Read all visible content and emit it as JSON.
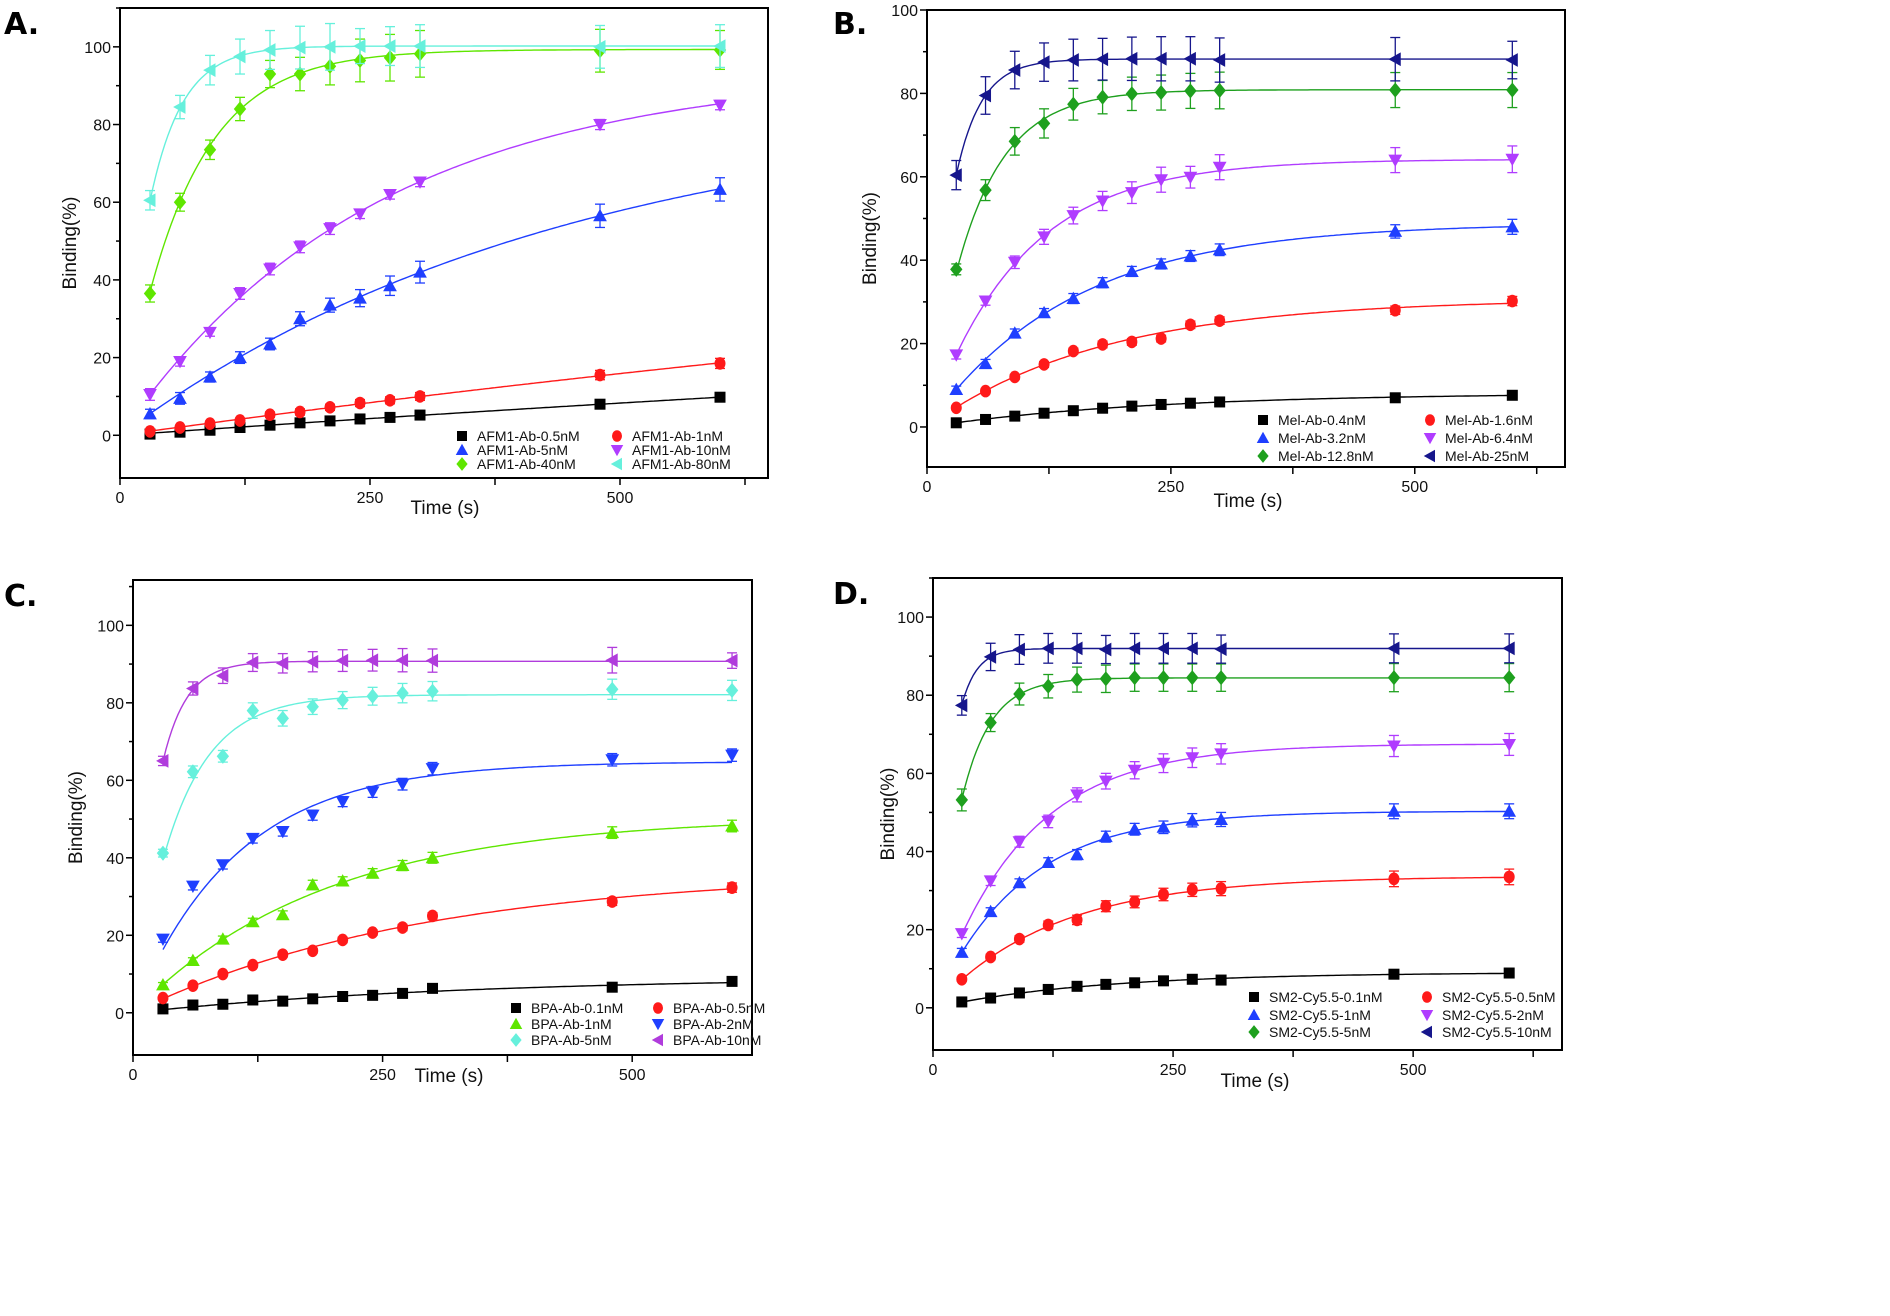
{
  "chart_data": [
    {
      "panel": "A.",
      "type": "scatter",
      "xlabel": "Time (s)",
      "ylabel": "Binding(%)",
      "xlim": [
        0,
        648
      ],
      "ylim": [
        -11,
        110
      ],
      "xticks": [
        0,
        250,
        500
      ],
      "yticks": [
        0,
        20,
        40,
        60,
        80,
        100
      ],
      "legend_position": "bottom-right",
      "x": [
        30,
        60,
        90,
        120,
        150,
        180,
        210,
        240,
        270,
        300,
        480,
        600
      ],
      "series": [
        {
          "name": "AFM1-Ab-0.5nM",
          "color": "#000000",
          "marker": "square",
          "values": [
            0.3,
            0.8,
            1.3,
            2,
            2.6,
            3.2,
            3.7,
            4.2,
            4.6,
            5.2,
            8,
            9.8
          ],
          "errors": [
            0.3,
            0.3,
            0.4,
            0.4,
            0.5,
            0.5,
            0.5,
            0.5,
            0.6,
            0.6,
            0.8,
            0.8
          ]
        },
        {
          "name": "AFM1-Ab-1nM",
          "color": "#ff1a1a",
          "marker": "circle",
          "values": [
            1,
            2,
            3,
            3.8,
            5.3,
            6,
            7.2,
            8.3,
            9,
            10,
            15.5,
            18.5
          ],
          "errors": [
            0.4,
            0.5,
            0.6,
            0.6,
            0.7,
            0.8,
            0.8,
            0.9,
            0.9,
            1,
            1.2,
            1.3
          ]
        },
        {
          "name": "AFM1-Ab-5nM",
          "color": "#1f3fff",
          "marker": "triangle-up",
          "values": [
            5.5,
            9.5,
            15,
            20,
            23.5,
            30,
            33.5,
            35.3,
            38.5,
            42,
            56.5,
            63.3
          ],
          "errors": [
            1.2,
            1.5,
            1.3,
            1.5,
            1.5,
            1.8,
            1.8,
            2.2,
            2.5,
            2.8,
            3,
            3
          ]
        },
        {
          "name": "AFM1-Ab-10nM",
          "color": "#b03cff",
          "marker": "triangle-down",
          "values": [
            10.5,
            19,
            26.5,
            36.5,
            42.8,
            48.5,
            53.2,
            57,
            62,
            65.2,
            80,
            85
          ],
          "errors": [
            1.5,
            1.2,
            1,
            1.5,
            1.5,
            1.5,
            1.5,
            1.2,
            1.2,
            1.2,
            1.3,
            1.2
          ]
        },
        {
          "name": "AFM1-Ab-40nM",
          "color": "#5fe600",
          "marker": "diamond",
          "values": [
            36.5,
            60,
            73.5,
            84,
            93,
            93,
            95,
            96.5,
            97.2,
            98.2,
            99,
            99.2
          ],
          "errors": [
            2.2,
            2.3,
            2.5,
            3,
            3.5,
            4.3,
            4.8,
            5.5,
            6,
            6,
            5.5,
            5
          ]
        },
        {
          "name": "AFM1-Ab-80nM",
          "color": "#66f0dc",
          "marker": "triangle-left",
          "values": [
            60.5,
            84.5,
            94,
            97.5,
            99.2,
            99.8,
            100,
            100.2,
            100.2,
            100.2,
            100,
            100.2
          ],
          "errors": [
            2.5,
            3,
            3.8,
            4.5,
            5,
            5.5,
            6,
            4.5,
            5,
            5.5,
            5.5,
            5.5
          ]
        }
      ]
    },
    {
      "panel": "B.",
      "type": "scatter",
      "xlabel": "Time (s)",
      "ylabel": "Binding(%)",
      "xlim": [
        0,
        654
      ],
      "ylim": [
        -9.6,
        100
      ],
      "xticks": [
        0,
        250,
        500
      ],
      "yticks": [
        0,
        20,
        40,
        60,
        80,
        100
      ],
      "legend_position": "bottom-right",
      "x": [
        30,
        60,
        90,
        120,
        150,
        180,
        210,
        240,
        270,
        300,
        480,
        600
      ],
      "series": [
        {
          "name": "Mel-Ab-0.4nM",
          "color": "#000000",
          "marker": "square",
          "values": [
            1,
            1.8,
            2.6,
            3.3,
            3.9,
            4.5,
            5,
            5.4,
            5.7,
            6,
            7,
            7.6
          ],
          "errors": [
            0.3,
            0.3,
            0.3,
            0.4,
            0.4,
            0.4,
            0.5,
            0.5,
            0.5,
            0.5,
            0.6,
            0.6
          ]
        },
        {
          "name": "Mel-Ab-1.6nM",
          "color": "#ff1a1a",
          "marker": "circle",
          "values": [
            4.6,
            8.6,
            12,
            15,
            18.2,
            19.8,
            20.4,
            21.2,
            24.5,
            25.5,
            28,
            30.2
          ],
          "errors": [
            0.5,
            0.6,
            0.6,
            0.7,
            0.7,
            0.8,
            0.8,
            0.8,
            0.9,
            0.9,
            1,
            1.1
          ]
        },
        {
          "name": "Mel-Ab-3.2nM",
          "color": "#1f3fff",
          "marker": "triangle-up",
          "values": [
            9,
            15.2,
            22.5,
            27.4,
            30.8,
            34.6,
            37.3,
            39.1,
            41,
            42.5,
            46.9,
            48
          ],
          "errors": [
            0.8,
            1,
            1,
            1,
            1.2,
            1.2,
            1.2,
            1.2,
            1.3,
            1.4,
            1.6,
            1.8
          ]
        },
        {
          "name": "Mel-Ab-6.4nM",
          "color": "#b03cff",
          "marker": "triangle-down",
          "values": [
            17.3,
            30.2,
            39.5,
            45.6,
            50.7,
            54.2,
            56.2,
            59.3,
            59.9,
            62.3,
            64,
            64.2
          ],
          "errors": [
            1,
            1,
            1.5,
            1.8,
            2,
            2.3,
            2.6,
            3,
            2.6,
            3,
            3,
            3.2
          ]
        },
        {
          "name": "Mel-Ab-12.8nM",
          "color": "#1ea01e",
          "marker": "diamond",
          "values": [
            37.8,
            56.8,
            68.5,
            72.8,
            77.4,
            79.1,
            79.9,
            80.2,
            80.6,
            80.7,
            80.8,
            80.8
          ],
          "errors": [
            1.3,
            2.5,
            3.3,
            3.5,
            3.8,
            4,
            4,
            4.2,
            4.2,
            4.4,
            4.2,
            4.2
          ]
        },
        {
          "name": "Mel-Ab-25nM",
          "color": "#16168c",
          "marker": "triangle-left",
          "values": [
            60.4,
            79.5,
            85.6,
            87.5,
            88,
            88.2,
            88.3,
            88.3,
            88.3,
            88,
            88.2,
            88
          ],
          "errors": [
            3.5,
            4.5,
            4.5,
            4.6,
            5,
            5,
            5.2,
            5.3,
            5.3,
            5.3,
            5.2,
            4.5
          ]
        }
      ]
    },
    {
      "panel": "C.",
      "type": "scatter",
      "xlabel": "Time (s)",
      "ylabel": "Binding(%)",
      "xlim": [
        0,
        620
      ],
      "ylim": [
        -10.9,
        111.7
      ],
      "xticks": [
        0,
        250,
        500
      ],
      "yticks": [
        0,
        20,
        40,
        60,
        80,
        100
      ],
      "legend_position": "bottom-right",
      "x": [
        30,
        60,
        90,
        120,
        150,
        180,
        210,
        240,
        270,
        300,
        480,
        600
      ],
      "series": [
        {
          "name": "BPA-Ab-0.1nM",
          "color": "#000000",
          "marker": "square",
          "values": [
            1,
            2,
            2.2,
            3.3,
            3,
            3.6,
            4.2,
            4.5,
            5,
            6.3,
            6.6,
            8.1
          ],
          "errors": [
            0.3,
            0.3,
            0.3,
            0.4,
            0.4,
            0.4,
            0.4,
            0.5,
            0.5,
            0.5,
            0.6,
            0.6
          ]
        },
        {
          "name": "BPA-Ab-0.5nM",
          "color": "#ff1a1a",
          "marker": "circle",
          "values": [
            3.8,
            7,
            10,
            12.3,
            15,
            16,
            18.8,
            20.7,
            22,
            25,
            28.7,
            32.3
          ],
          "errors": [
            0.4,
            0.5,
            0.5,
            0.6,
            0.6,
            0.6,
            0.7,
            0.7,
            0.8,
            0.8,
            1,
            1.2
          ]
        },
        {
          "name": "BPA-Ab-1nM",
          "color": "#5fe600",
          "marker": "triangle-up",
          "values": [
            7.2,
            13.5,
            19,
            23.5,
            25.3,
            33,
            34,
            36,
            38,
            40,
            46.5,
            48.2
          ],
          "errors": [
            0.6,
            0.7,
            0.8,
            0.9,
            1,
            1.2,
            1.1,
            1.2,
            1.3,
            1.4,
            1.5,
            1.5
          ]
        },
        {
          "name": "BPA-Ab-2nM",
          "color": "#1f3fff",
          "marker": "triangle-down",
          "values": [
            19,
            32.7,
            38.2,
            45,
            46.8,
            51,
            54.5,
            57,
            59,
            63,
            65.3,
            66.5
          ],
          "errors": [
            0.8,
            1,
            1.1,
            1.2,
            1.2,
            1.3,
            1.3,
            1.4,
            1.5,
            1.6,
            1.6,
            1.6
          ]
        },
        {
          "name": "BPA-Ab-5nM",
          "color": "#66f0dc",
          "marker": "diamond",
          "values": [
            41.2,
            62.2,
            66.2,
            78,
            76,
            79,
            80.7,
            81.7,
            82.5,
            83,
            83.5,
            83.2
          ],
          "errors": [
            1,
            1.5,
            1.5,
            2,
            2,
            2,
            2.2,
            2.3,
            2.5,
            2.5,
            2.6,
            2.6
          ]
        },
        {
          "name": "BPA-Ab-10nM",
          "color": "#b03cdc",
          "marker": "triangle-left",
          "values": [
            65,
            83.7,
            87,
            90.4,
            90.2,
            90.6,
            90.9,
            91,
            91,
            90.9,
            91,
            90.9
          ],
          "errors": [
            1.2,
            1.7,
            2,
            2.3,
            2.5,
            2.6,
            2.8,
            2.8,
            3,
            3,
            3.3,
            2
          ]
        }
      ]
    },
    {
      "panel": "D.",
      "type": "scatter",
      "xlabel": "Time (s)",
      "ylabel": "Binding(%)",
      "xlim": [
        0,
        655
      ],
      "ylim": [
        -10.8,
        110
      ],
      "xticks": [
        0,
        250,
        500
      ],
      "yticks": [
        0,
        20,
        40,
        60,
        80,
        100
      ],
      "legend_position": "bottom-right",
      "x": [
        30,
        60,
        90,
        120,
        150,
        180,
        210,
        240,
        270,
        300,
        480,
        600
      ],
      "series": [
        {
          "name": "SM2-Cy5.5-0.1nM",
          "color": "#000000",
          "marker": "square",
          "values": [
            1.5,
            2.5,
            3.8,
            4.7,
            5.5,
            6,
            6.4,
            6.9,
            7.3,
            7.1,
            8.6,
            8.9
          ],
          "errors": [
            0.3,
            0.3,
            0.3,
            0.4,
            0.4,
            0.4,
            0.4,
            0.5,
            0.5,
            0.5,
            0.6,
            0.6
          ]
        },
        {
          "name": "SM2-Cy5.5-0.5nM",
          "color": "#ff1a1a",
          "marker": "circle",
          "values": [
            7.3,
            13,
            17.6,
            21.2,
            22.5,
            26,
            27.1,
            29,
            30.2,
            30.5,
            33,
            33.5
          ],
          "errors": [
            0.5,
            0.7,
            0.8,
            1,
            1.2,
            1.4,
            1.5,
            1.6,
            1.7,
            1.8,
            2,
            2
          ]
        },
        {
          "name": "SM2-Cy5.5-1nM",
          "color": "#1f3fff",
          "marker": "triangle-up",
          "values": [
            14.2,
            24.6,
            32,
            37.2,
            39.2,
            43.8,
            45.7,
            46.2,
            48,
            48.2,
            50.3,
            50.3
          ],
          "errors": [
            1,
            1,
            1,
            1.2,
            1.3,
            1.4,
            1.5,
            1.6,
            1.7,
            1.8,
            1.9,
            1.9
          ]
        },
        {
          "name": "SM2-Cy5.5-2nM",
          "color": "#b03cff",
          "marker": "triangle-down",
          "values": [
            19,
            32.5,
            42.5,
            47.7,
            54.5,
            58,
            60.8,
            62.6,
            64,
            65,
            67,
            67.4
          ],
          "errors": [
            1,
            1.2,
            1.4,
            1.6,
            1.8,
            2,
            2.2,
            2.4,
            2.5,
            2.6,
            2.7,
            2.8
          ]
        },
        {
          "name": "SM2-Cy5.5-5nM",
          "color": "#1ea01e",
          "marker": "diamond",
          "values": [
            53.2,
            73,
            80.3,
            82.3,
            84,
            84.2,
            84.5,
            84.5,
            84.5,
            84.5,
            84.5,
            84.5
          ],
          "errors": [
            2.8,
            2.3,
            2.8,
            3,
            3.2,
            3.5,
            3.5,
            3.5,
            3.5,
            3.5,
            3.6,
            3.6
          ]
        },
        {
          "name": "SM2-Cy5.5-10nM",
          "color": "#16168c",
          "marker": "triangle-left",
          "values": [
            77.4,
            89.8,
            91.7,
            92,
            92,
            91.7,
            92,
            92,
            92,
            91.8,
            92,
            92
          ],
          "errors": [
            2.5,
            3.5,
            3.8,
            3.8,
            3.8,
            3.6,
            3.8,
            3.8,
            3.8,
            3.6,
            3.7,
            3.7
          ]
        }
      ]
    }
  ]
}
